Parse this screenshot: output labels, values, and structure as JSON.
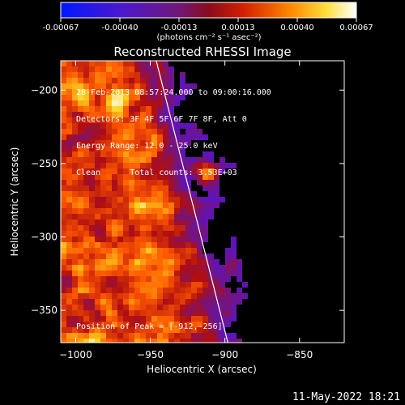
{
  "colorbar": {
    "ticks": [
      "-0.00067",
      "-0.00040",
      "-0.00013",
      "0.00013",
      "0.00040",
      "0.00067"
    ],
    "unit_label": "(photons cm⁻² s⁻¹ asec⁻²)",
    "colors": [
      "#0018ff",
      "#5a14c8",
      "#7a1470",
      "#b00e10",
      "#ff5a00",
      "#ffd21e",
      "#ffffff"
    ]
  },
  "chart_data": {
    "type": "heatmap",
    "title": "Reconstructed RHESSI Image",
    "xlabel": "Heliocentric X (arcsec)",
    "ylabel": "Heliocentric Y (arcsec)",
    "xlim": [
      -1010,
      -820
    ],
    "ylim": [
      -372,
      -180
    ],
    "x_ticks": [
      -1000,
      -950,
      -900,
      -850
    ],
    "y_ticks": [
      -200,
      -250,
      -300,
      -350
    ],
    "x_tick_labels": [
      "−1000",
      "−950",
      "−900",
      "−850"
    ],
    "y_tick_labels": [
      "−200",
      "−250",
      "−300",
      "−350"
    ],
    "peak": [
      -912,
      -256
    ],
    "limb_line": [
      [
        -946,
        -180
      ],
      [
        -898,
        -372
      ]
    ]
  },
  "info": {
    "time_range": "28-Feb-2013 08:57:24.000 to 09:00:16.000",
    "detectors": "Detectors: 3F 4F 5F 6F 7F 8F, Att 0",
    "energy": "Energy Range: 12.0 - 25.0 keV",
    "method": "Clean      Total counts: 3.53E+03",
    "peak_position": "Position of Peak = [-912,-256]"
  },
  "timestamp": "11-May-2022 18:21"
}
